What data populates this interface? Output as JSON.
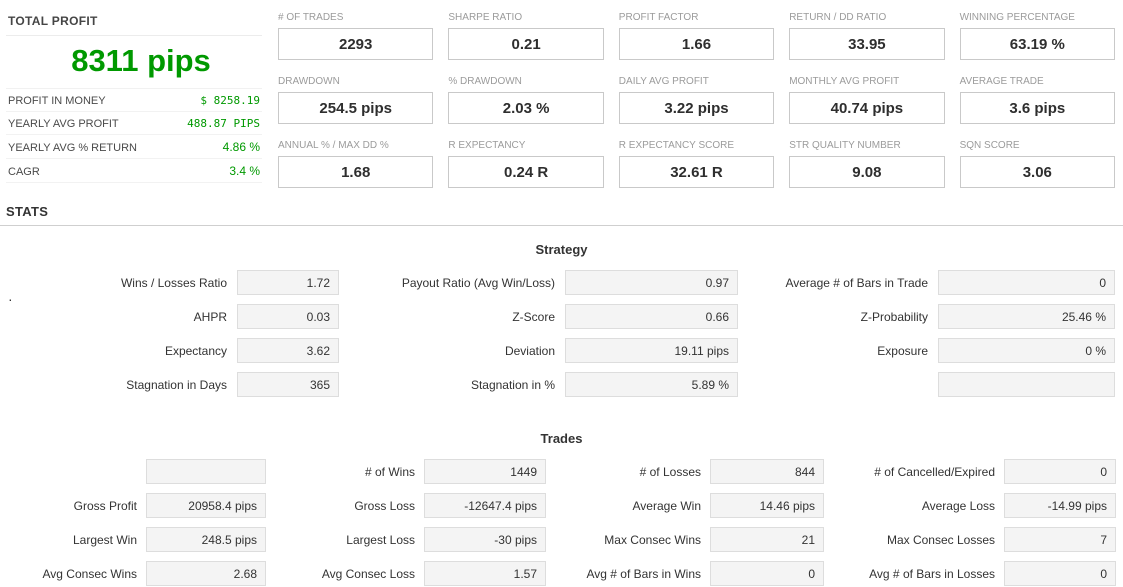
{
  "summary": {
    "title": "TOTAL PROFIT",
    "total_profit": "8311 pips",
    "rows": [
      {
        "label": "PROFIT IN MONEY",
        "value": "$ 8258.19"
      },
      {
        "label": "YEARLY AVG PROFIT",
        "value": "488.87 PIPS"
      },
      {
        "label": "YEARLY AVG % RETURN",
        "value": "4.86 %"
      },
      {
        "label": "CAGR",
        "value": "3.4 %"
      }
    ]
  },
  "stats_heading": "STATS",
  "metrics": [
    {
      "label": "# OF TRADES",
      "value": "2293"
    },
    {
      "label": "SHARPE RATIO",
      "value": "0.21"
    },
    {
      "label": "PROFIT FACTOR",
      "value": "1.66"
    },
    {
      "label": "RETURN / DD RATIO",
      "value": "33.95"
    },
    {
      "label": "WINNING PERCENTAGE",
      "value": "63.19 %"
    },
    {
      "label": "DRAWDOWN",
      "value": "254.5 pips"
    },
    {
      "label": "% DRAWDOWN",
      "value": "2.03 %"
    },
    {
      "label": "DAILY AVG PROFIT",
      "value": "3.22 pips"
    },
    {
      "label": "MONTHLY AVG PROFIT",
      "value": "40.74 pips"
    },
    {
      "label": "AVERAGE TRADE",
      "value": "3.6 pips"
    },
    {
      "label": "ANNUAL % / MAX DD %",
      "value": "1.68"
    },
    {
      "label": "R EXPECTANCY",
      "value": "0.24 R"
    },
    {
      "label": "R EXPECTANCY SCORE",
      "value": "32.61 R"
    },
    {
      "label": "STR QUALITY NUMBER",
      "value": "9.08"
    },
    {
      "label": "SQN SCORE",
      "value": "3.06"
    }
  ],
  "strategy": {
    "title": "Strategy",
    "bullet": "·",
    "rows": [
      {
        "cells": [
          {
            "label": "Wins / Losses Ratio",
            "value": "1.72"
          },
          {
            "label": "Payout Ratio (Avg Win/Loss)",
            "value": "0.97"
          },
          {
            "label": "Average # of Bars in Trade",
            "value": "0"
          }
        ]
      },
      {
        "cells": [
          {
            "label": "AHPR",
            "value": "0.03"
          },
          {
            "label": "Z-Score",
            "value": "0.66"
          },
          {
            "label": "Z-Probability",
            "value": "25.46 %"
          }
        ]
      },
      {
        "cells": [
          {
            "label": "Expectancy",
            "value": "3.62"
          },
          {
            "label": "Deviation",
            "value": "19.11 pips"
          },
          {
            "label": "Exposure",
            "value": "0 %"
          }
        ]
      },
      {
        "cells": [
          {
            "label": "Stagnation in Days",
            "value": "365"
          },
          {
            "label": "Stagnation in %",
            "value": "5.89 %"
          },
          {
            "label": "",
            "value": ""
          }
        ]
      }
    ]
  },
  "trades": {
    "title": "Trades",
    "rows": [
      {
        "cells": [
          {
            "label": "",
            "value": ""
          },
          {
            "label": "# of Wins",
            "value": "1449"
          },
          {
            "label": "# of Losses",
            "value": "844"
          },
          {
            "label": "# of Cancelled/Expired",
            "value": "0"
          }
        ]
      },
      {
        "cells": [
          {
            "label": "Gross Profit",
            "value": "20958.4 pips"
          },
          {
            "label": "Gross Loss",
            "value": "-12647.4 pips"
          },
          {
            "label": "Average Win",
            "value": "14.46 pips"
          },
          {
            "label": "Average Loss",
            "value": "-14.99 pips"
          }
        ]
      },
      {
        "cells": [
          {
            "label": "Largest Win",
            "value": "248.5 pips"
          },
          {
            "label": "Largest Loss",
            "value": "-30 pips"
          },
          {
            "label": "Max Consec Wins",
            "value": "21"
          },
          {
            "label": "Max Consec Losses",
            "value": "7"
          }
        ]
      },
      {
        "cells": [
          {
            "label": "Avg Consec Wins",
            "value": "2.68"
          },
          {
            "label": "Avg Consec Loss",
            "value": "1.57"
          },
          {
            "label": "Avg # of Bars in Wins",
            "value": "0"
          },
          {
            "label": "Avg # of Bars in Losses",
            "value": "0"
          }
        ]
      }
    ]
  },
  "colors": {
    "profit_green": "#009900",
    "label_gray": "#9b9b9b",
    "value_dark": "#2e2e2e"
  }
}
